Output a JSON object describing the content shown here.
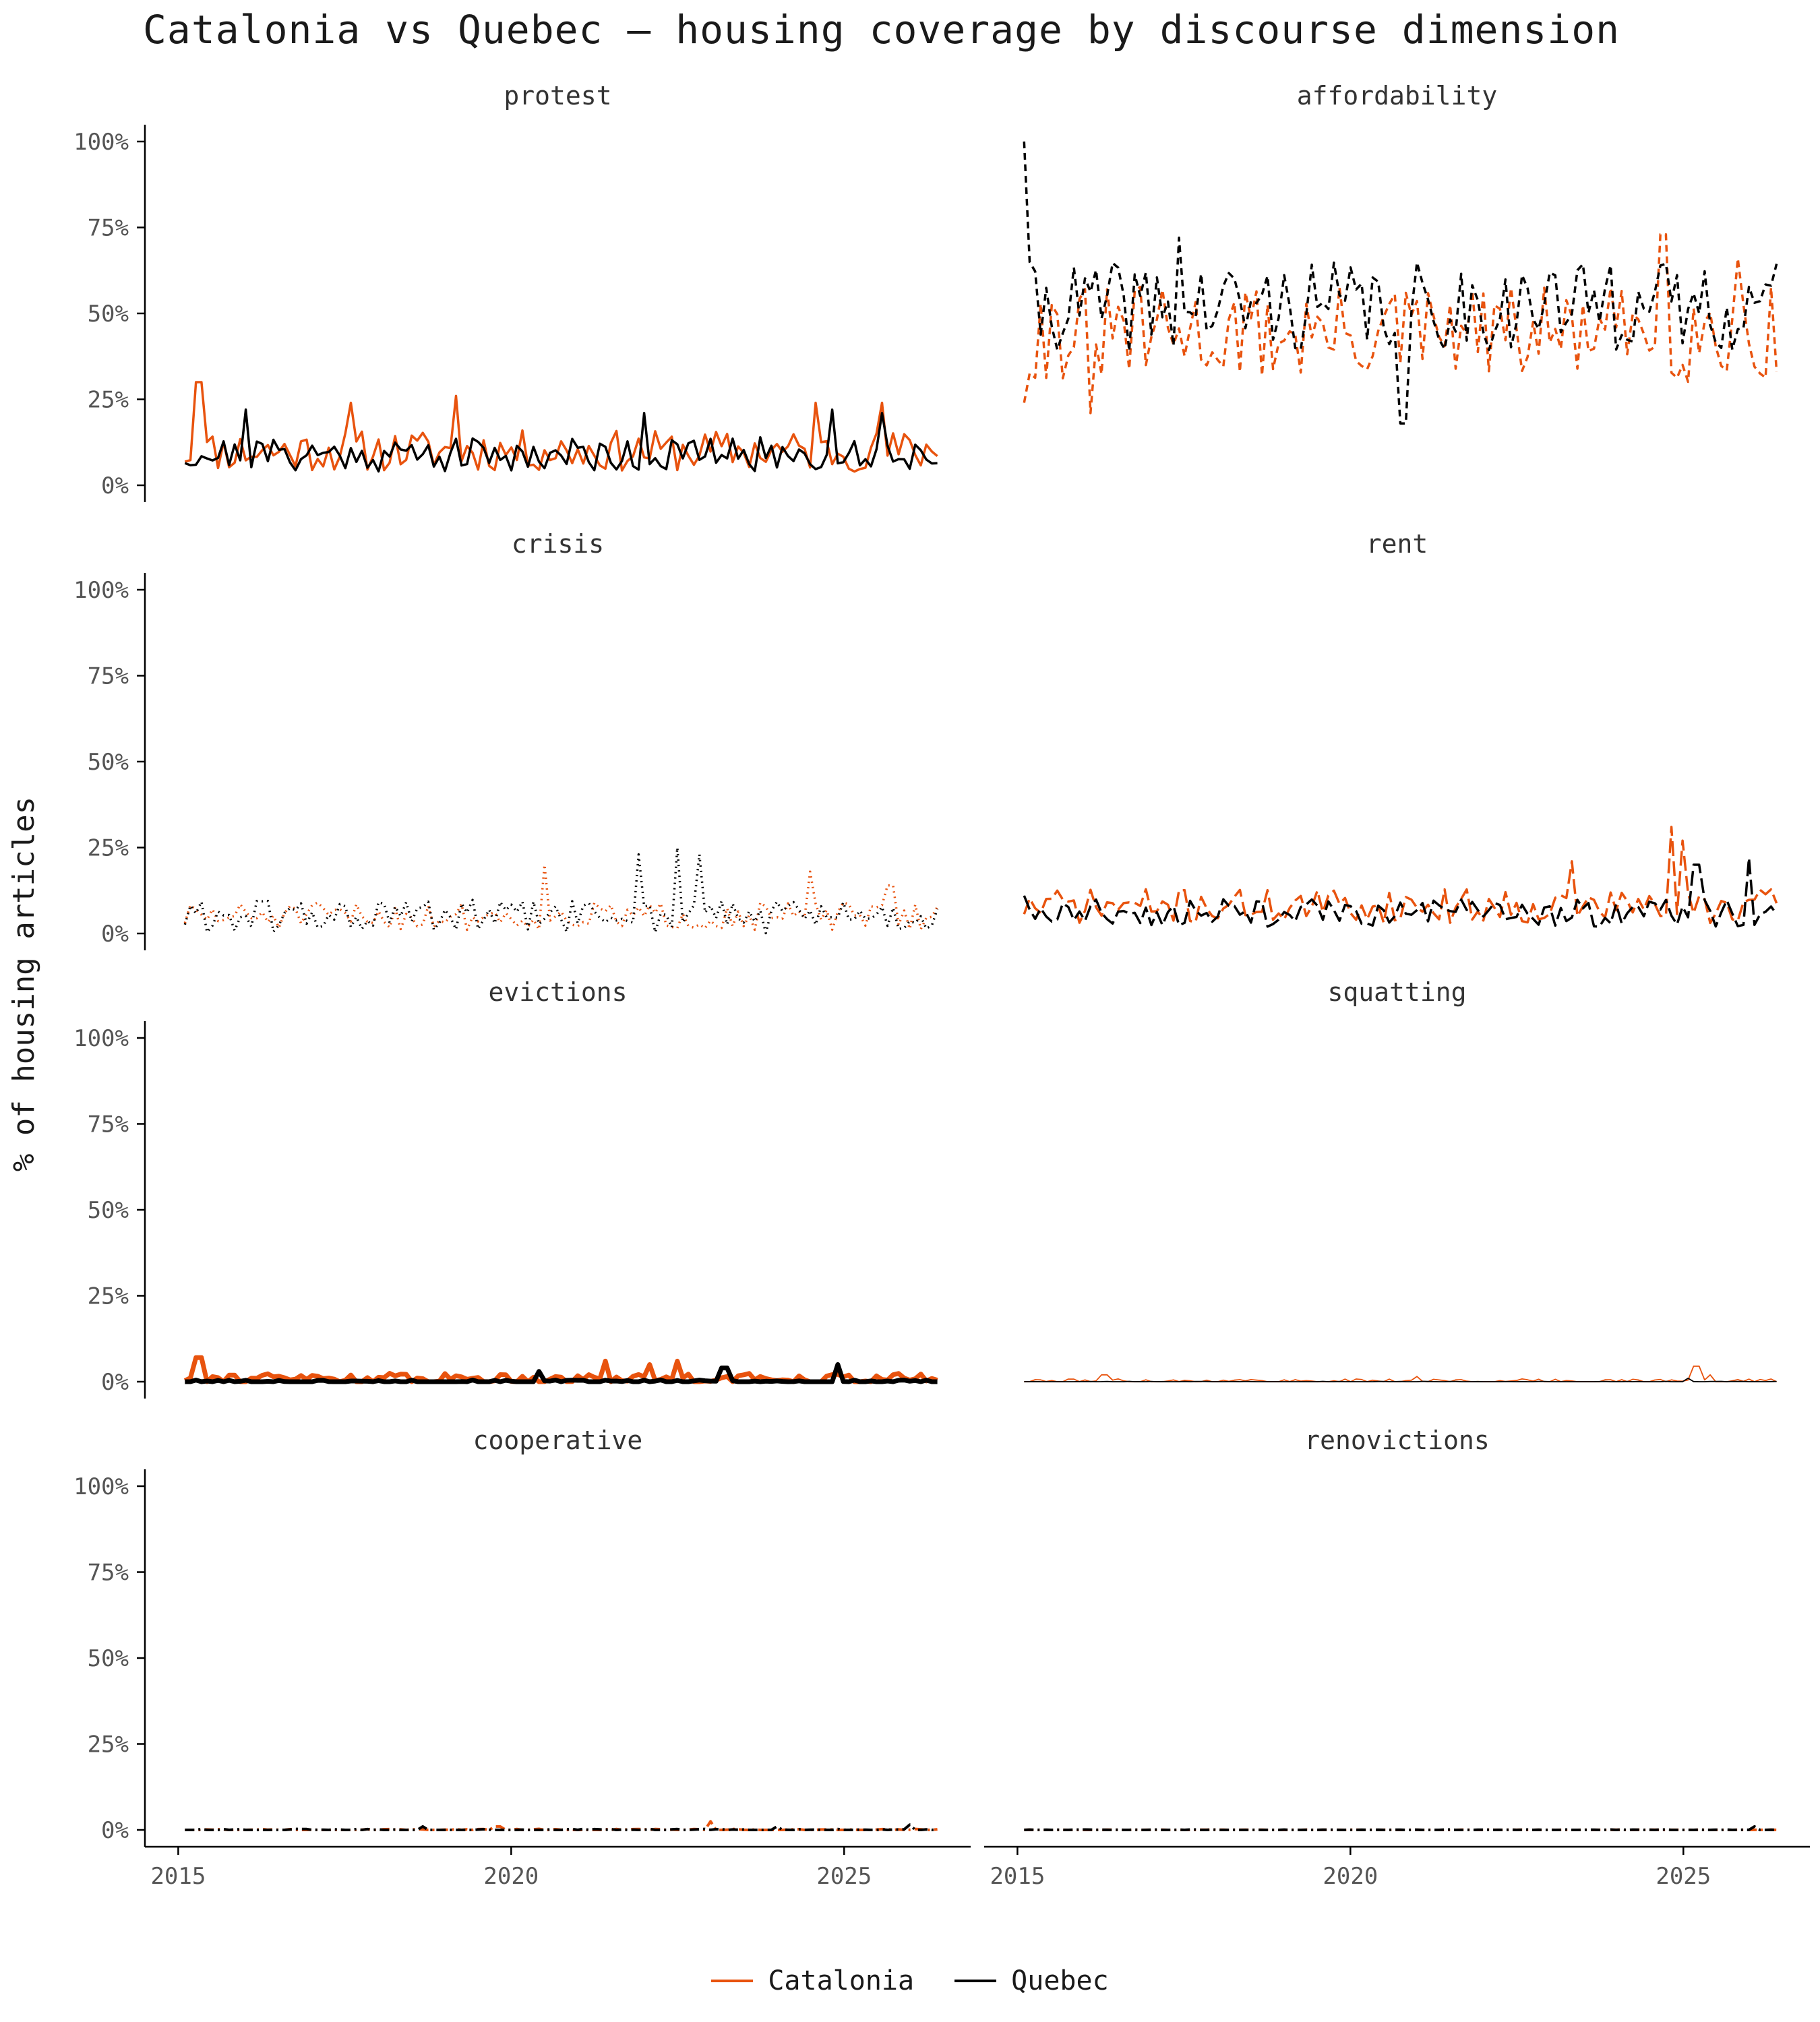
{
  "title": "Catalonia vs Quebec — housing coverage by discourse dimension",
  "ylabel": "% of housing articles",
  "legend": [
    {
      "name": "Catalonia",
      "color": "#e8530e"
    },
    {
      "name": "Quebec",
      "color": "#000000"
    }
  ],
  "chart_data": {
    "type": "line",
    "facet_layout": "4 rows x 2 columns",
    "xlim": [
      2015,
      2026.5
    ],
    "ylim": [
      0,
      100
    ],
    "x_ticks": [
      2015,
      2020,
      2025
    ],
    "x_tick_labels": [
      "2015",
      "2020",
      "2025"
    ],
    "y_ticks": [
      0,
      25,
      50,
      75,
      100
    ],
    "y_tick_labels": [
      "0%",
      "25%",
      "50%",
      "75%",
      "100%"
    ],
    "grid": false,
    "legend_position": "bottom",
    "panels": [
      {
        "name": "protest",
        "line_style": "solid",
        "series": [
          {
            "name": "Catalonia",
            "base": 10,
            "amp": 6,
            "seed": 11,
            "peaks": [
              [
                2015.3,
                30
              ],
              [
                2017.6,
                24
              ],
              [
                2019.2,
                26
              ],
              [
                2024.6,
                24
              ],
              [
                2025.6,
                24
              ]
            ]
          },
          {
            "name": "Quebec",
            "base": 9,
            "amp": 5,
            "seed": 21,
            "peaks": [
              [
                2016.0,
                22
              ],
              [
                2022.0,
                21
              ],
              [
                2024.8,
                22
              ],
              [
                2025.6,
                21
              ]
            ]
          }
        ]
      },
      {
        "name": "affordability",
        "line_style": "dashed",
        "series": [
          {
            "name": "Catalonia",
            "base": 44,
            "amp": 14,
            "seed": 31,
            "peaks": [
              [
                2015.1,
                24
              ],
              [
                2016.1,
                21
              ],
              [
                2024.7,
                73
              ],
              [
                2025.8,
                66
              ]
            ]
          },
          {
            "name": "Quebec",
            "base": 52,
            "amp": 13,
            "seed": 41,
            "peaks": [
              [
                2015.05,
                100
              ],
              [
                2017.4,
                72
              ],
              [
                2020.8,
                18
              ],
              [
                2023.9,
                64
              ]
            ]
          }
        ]
      },
      {
        "name": "crisis",
        "line_style": "dotted",
        "series": [
          {
            "name": "Catalonia",
            "base": 5,
            "amp": 4,
            "seed": 51,
            "peaks": [
              [
                2020.5,
                20
              ],
              [
                2024.5,
                18
              ],
              [
                2025.7,
                14
              ]
            ]
          },
          {
            "name": "Quebec",
            "base": 5,
            "amp": 5,
            "seed": 61,
            "peaks": [
              [
                2021.9,
                23
              ],
              [
                2022.5,
                25
              ],
              [
                2022.8,
                23
              ]
            ]
          }
        ]
      },
      {
        "name": "rent",
        "line_style": "longdash",
        "series": [
          {
            "name": "Catalonia",
            "base": 8,
            "amp": 5,
            "seed": 71,
            "peaks": [
              [
                2023.3,
                21
              ],
              [
                2024.8,
                31
              ],
              [
                2025.0,
                27
              ]
            ]
          },
          {
            "name": "Quebec",
            "base": 6,
            "amp": 4,
            "seed": 81,
            "peaks": [
              [
                2015.0,
                11
              ],
              [
                2025.2,
                20
              ],
              [
                2026.0,
                22
              ]
            ]
          }
        ]
      },
      {
        "name": "evictions",
        "line_style": "thick",
        "series": [
          {
            "name": "Catalonia",
            "base": 1,
            "amp": 1.5,
            "seed": 91,
            "peaks": [
              [
                2015.3,
                7
              ],
              [
                2021.4,
                6
              ],
              [
                2022.1,
                5
              ],
              [
                2022.5,
                6
              ]
            ]
          },
          {
            "name": "Quebec",
            "base": 0,
            "amp": 0.5,
            "seed": 101,
            "peaks": [
              [
                2020.4,
                3
              ],
              [
                2023.2,
                4
              ],
              [
                2024.9,
                5
              ]
            ]
          }
        ]
      },
      {
        "name": "squatting",
        "line_style": "thin",
        "series": [
          {
            "name": "Catalonia",
            "base": 0.2,
            "amp": 0.6,
            "seed": 111,
            "peaks": [
              [
                2016.3,
                2
              ],
              [
                2021.0,
                1.5
              ],
              [
                2025.2,
                4.5
              ],
              [
                2025.4,
                2
              ]
            ]
          },
          {
            "name": "Quebec",
            "base": 0,
            "amp": 0.1,
            "seed": 121,
            "peaks": [
              [
                2025.1,
                1
              ]
            ]
          }
        ]
      },
      {
        "name": "cooperative",
        "line_style": "dashdot",
        "series": [
          {
            "name": "Catalonia",
            "base": 0,
            "amp": 0.3,
            "seed": 131,
            "peaks": [
              [
                2019.8,
                1
              ],
              [
                2023.0,
                2.5
              ]
            ]
          },
          {
            "name": "Quebec",
            "base": 0,
            "amp": 0.3,
            "seed": 141,
            "peaks": [
              [
                2018.7,
                1
              ],
              [
                2024.0,
                1
              ],
              [
                2026.0,
                1.5
              ]
            ]
          }
        ]
      },
      {
        "name": "renovictions",
        "line_style": "dashdot",
        "series": [
          {
            "name": "Catalonia",
            "base": 0,
            "amp": 0.05,
            "seed": 151,
            "peaks": []
          },
          {
            "name": "Quebec",
            "base": 0,
            "amp": 0.1,
            "seed": 161,
            "peaks": [
              [
                2026.1,
                1
              ]
            ]
          }
        ]
      }
    ]
  }
}
